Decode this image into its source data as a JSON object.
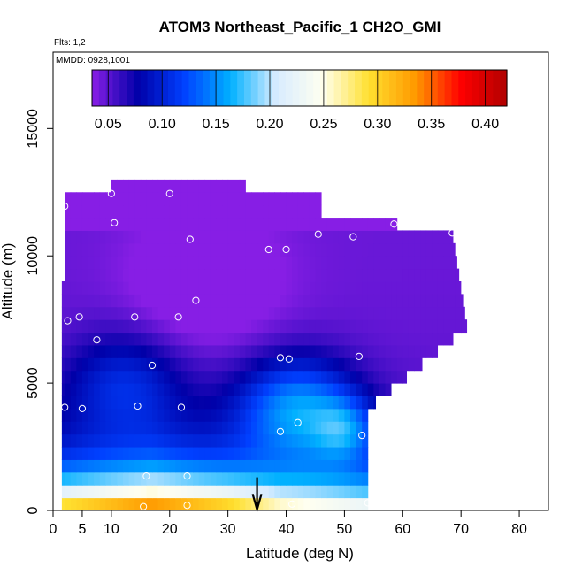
{
  "chart_data": {
    "type": "heatmap",
    "title": "ATOM3 Northeast_Pacific_1 CH2O_GMI",
    "flights_label": "Flts: 1,2",
    "dates_label": "MMDD: 0928,1001",
    "xlabel": "Latitude (deg N)",
    "ylabel": "Altitude (m)",
    "xlim": [
      0,
      85
    ],
    "ylim": [
      0,
      18000
    ],
    "xticks": [
      0,
      5,
      10,
      20,
      30,
      40,
      50,
      60,
      70,
      80
    ],
    "xtick_labels": [
      "0",
      "5",
      "10",
      "20",
      "30",
      "40",
      "50",
      "60",
      "70",
      "80"
    ],
    "yticks": [
      0,
      5000,
      10000,
      15000
    ],
    "ytick_labels": [
      "0",
      "5000",
      "10000",
      "15000"
    ],
    "colorbar": {
      "min": 0.035,
      "max": 0.42,
      "ticks": [
        0.05,
        0.1,
        0.15,
        0.2,
        0.25,
        0.3,
        0.35,
        0.4
      ],
      "tick_labels": [
        "0.05",
        "0.10",
        "0.15",
        "0.20",
        "0.25",
        "0.30",
        "0.35",
        "0.40"
      ],
      "colors": [
        "#8A1FE6",
        "#0000A8",
        "#0040FF",
        "#00B0FF",
        "#D8ECFF",
        "#FFFFF0",
        "#FFE030",
        "#FF9A00",
        "#FF0000",
        "#B00000"
      ]
    },
    "grid": false,
    "flight_points": [
      [
        15.5,
        150
      ],
      [
        23,
        200
      ],
      [
        16,
        1350
      ],
      [
        23,
        1350
      ],
      [
        41,
        250
      ],
      [
        54,
        300
      ],
      [
        39,
        3100
      ],
      [
        42,
        3450
      ],
      [
        53,
        2950
      ],
      [
        2,
        4050
      ],
      [
        5,
        4000
      ],
      [
        14.5,
        4100
      ],
      [
        22,
        4050
      ],
      [
        17,
        5700
      ],
      [
        39,
        6000
      ],
      [
        40.5,
        5950
      ],
      [
        52.5,
        6050
      ],
      [
        70.5,
        6000
      ],
      [
        7.5,
        6700
      ],
      [
        2.5,
        7450
      ],
      [
        4.5,
        7600
      ],
      [
        14,
        7600
      ],
      [
        21.5,
        7600
      ],
      [
        24.5,
        8250
      ],
      [
        37,
        10250
      ],
      [
        40,
        10250
      ],
      [
        23.5,
        10650
      ],
      [
        45.5,
        10850
      ],
      [
        51.5,
        10750
      ],
      [
        58.5,
        11250
      ],
      [
        68.5,
        10900
      ],
      [
        10.5,
        11300
      ],
      [
        2,
        11950
      ],
      [
        10,
        12450
      ],
      [
        20,
        12450
      ]
    ],
    "location_marker_lat": 35
  }
}
